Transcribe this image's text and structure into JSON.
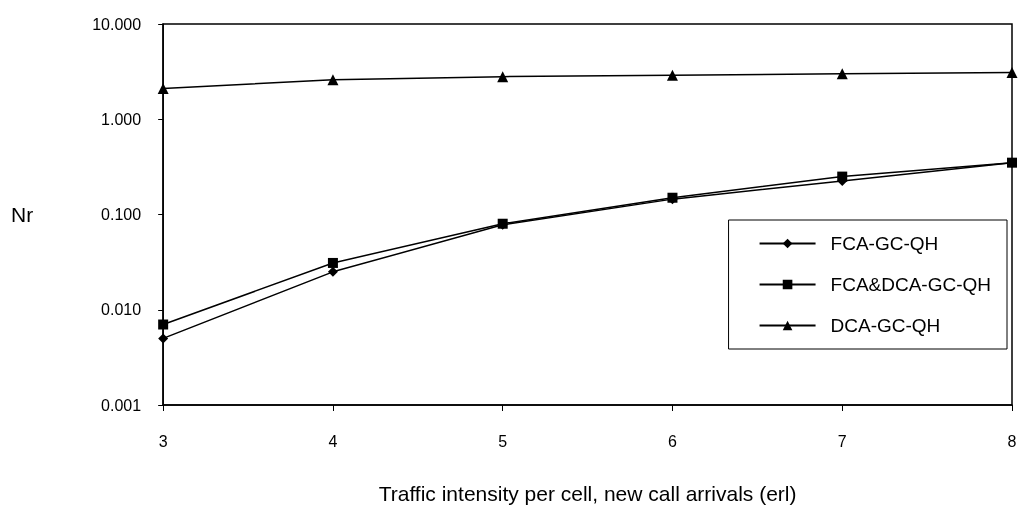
{
  "chart_data": {
    "type": "line",
    "xlabel": "Traffic intensity per cell, new call arrivals (erl)",
    "ylabel": "Nr",
    "x": [
      3,
      4,
      5,
      6,
      7,
      8
    ],
    "series": [
      {
        "name": "FCA-GC-QH",
        "color": "#000000",
        "marker": "diamond",
        "values": [
          0.005,
          0.025,
          0.078,
          0.145,
          0.225,
          0.35
        ]
      },
      {
        "name": "FCA&DCA-GC-QH",
        "color": "#000000",
        "marker": "square",
        "values": [
          0.007,
          0.031,
          0.08,
          0.15,
          0.25,
          0.35
        ]
      },
      {
        "name": "DCA-GC-QH",
        "color": "#000000",
        "marker": "triangle",
        "values": [
          2.1,
          2.6,
          2.8,
          2.9,
          3.0,
          3.1
        ]
      }
    ],
    "log": "y",
    "xlim": [
      3,
      8
    ],
    "xticks": [
      3,
      4,
      5,
      6,
      7,
      8
    ],
    "ylim": [
      0.001,
      10
    ],
    "yticks": [
      {
        "value": 0.001,
        "label": "0.001"
      },
      {
        "value": 0.01,
        "label": "0.010"
      },
      {
        "value": 0.1,
        "label": "0.100"
      },
      {
        "value": 1,
        "label": "1.000"
      },
      {
        "value": 10,
        "label": "10.000"
      }
    ],
    "grid": false,
    "legend": "right",
    "line_style": "solid"
  }
}
